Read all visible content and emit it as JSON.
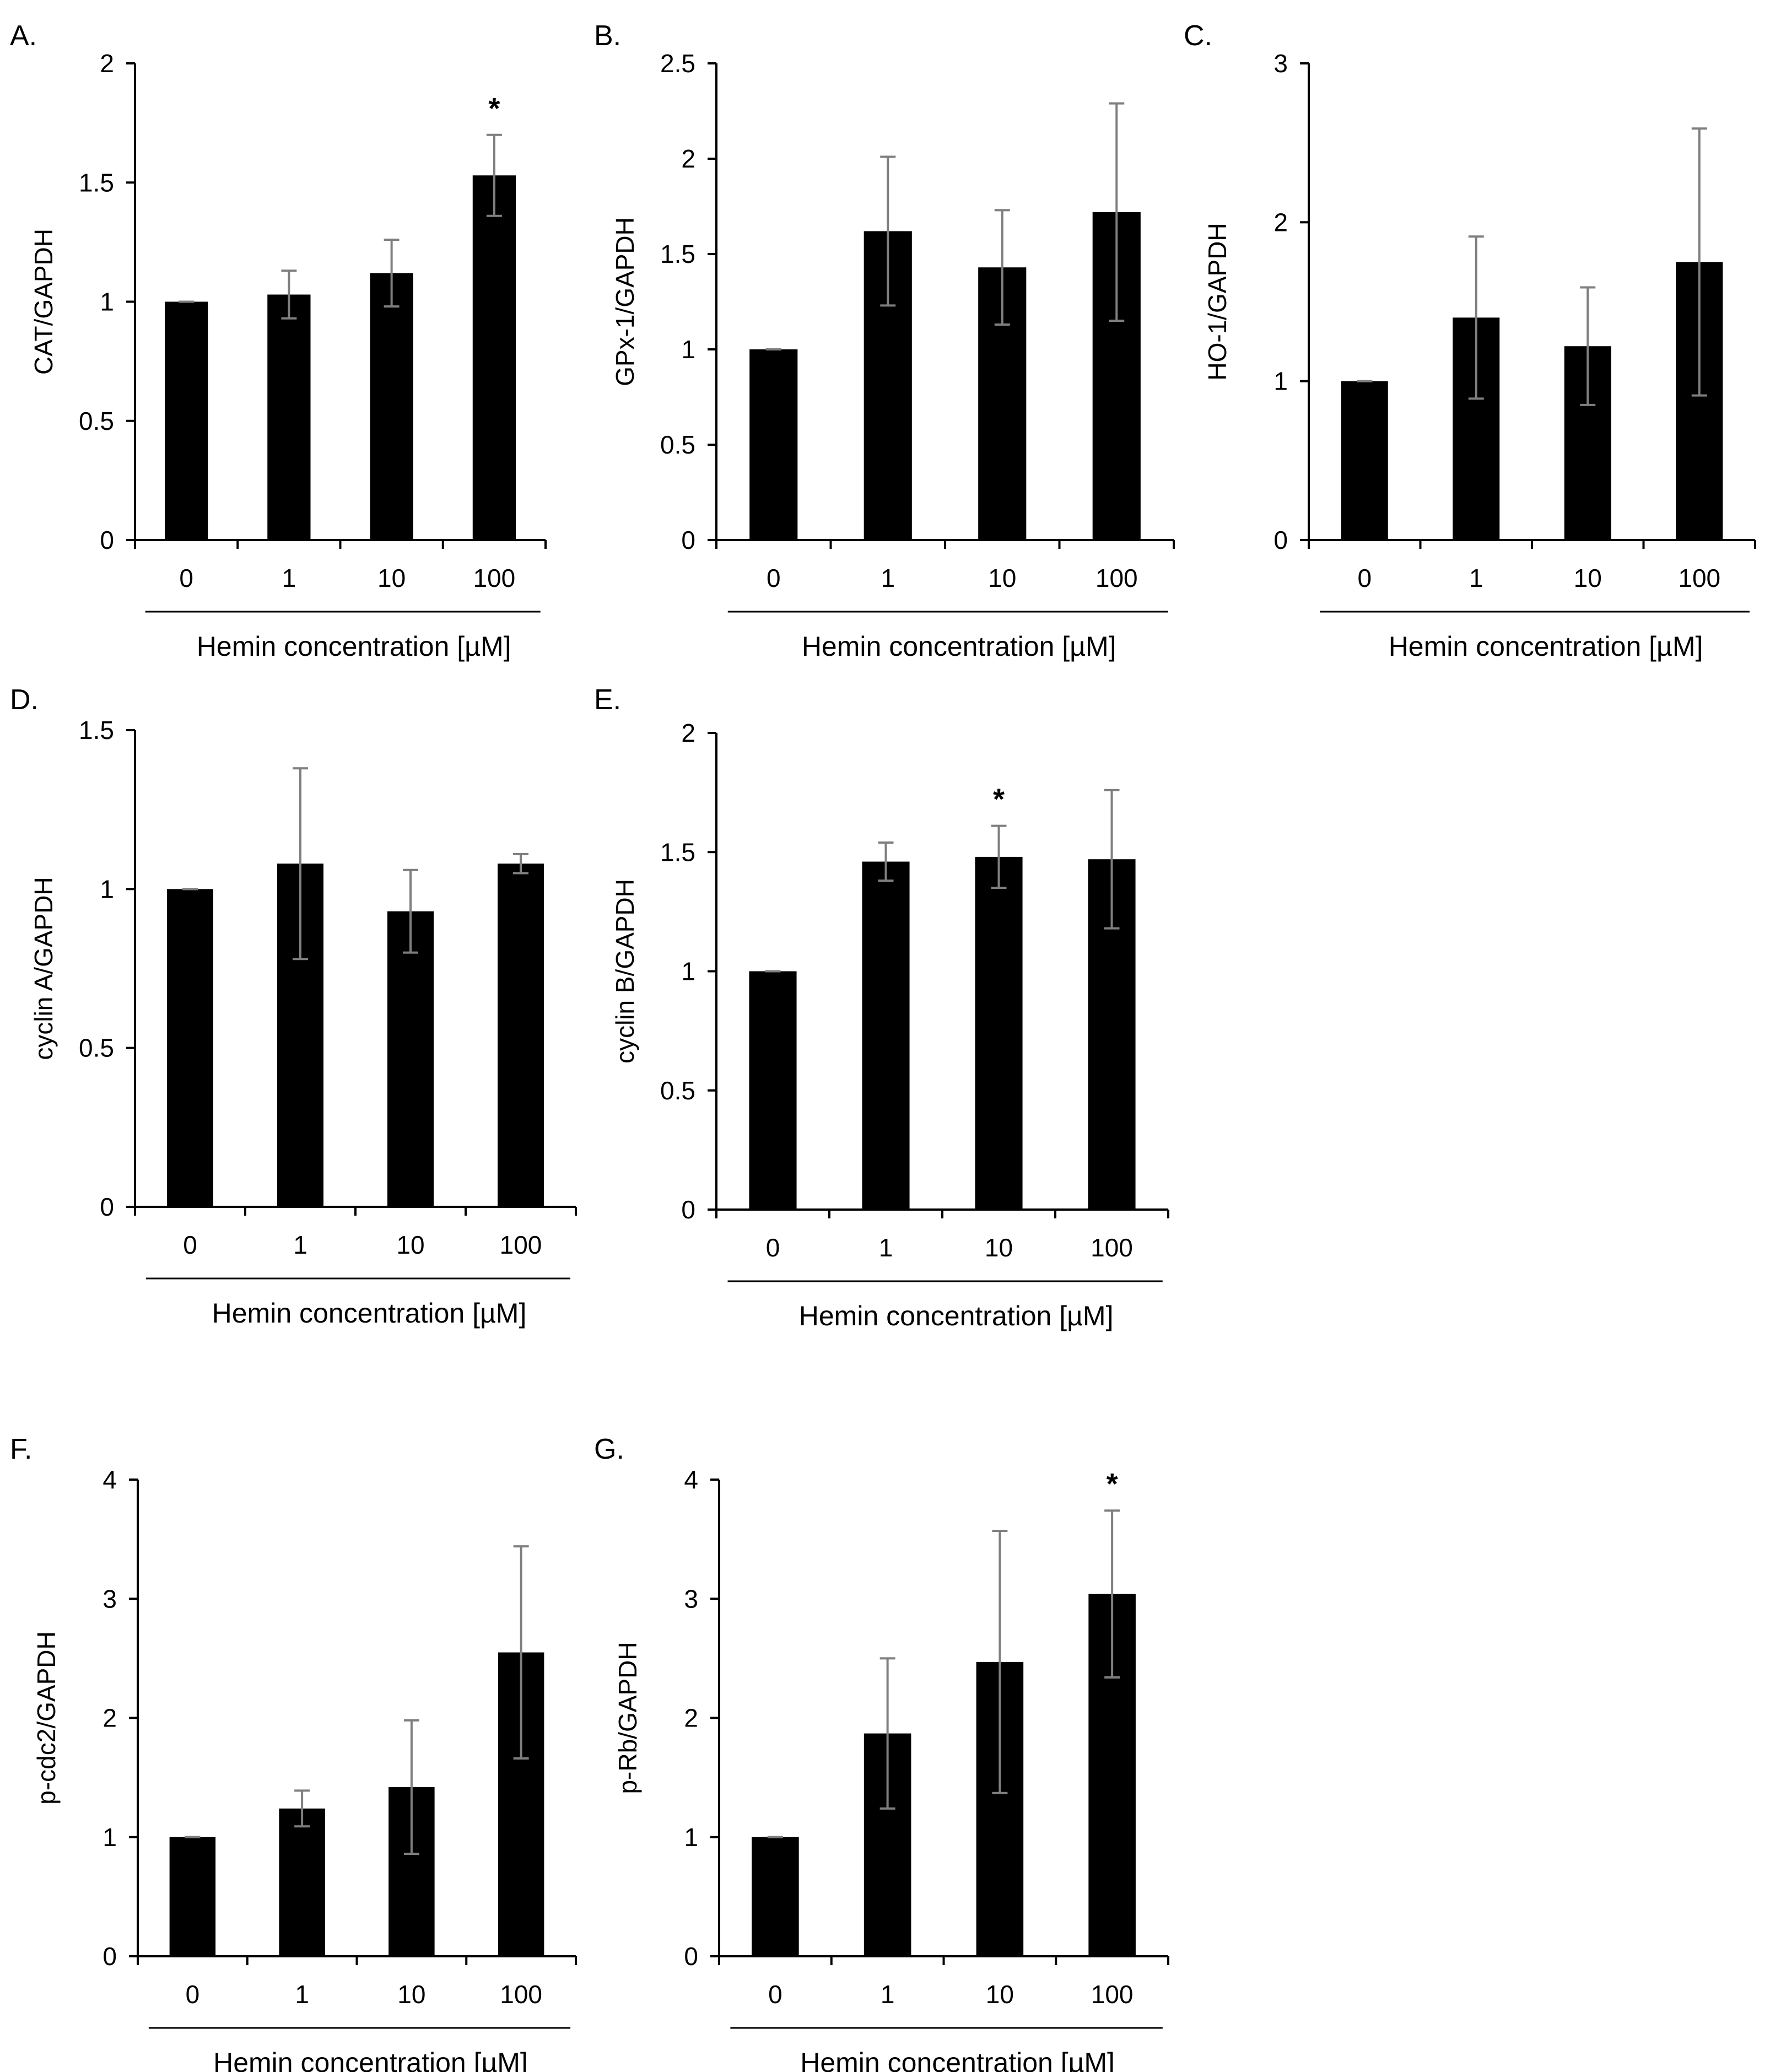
{
  "chart_data": [
    {
      "panel": "A.",
      "type": "bar",
      "ylabel": "CAT/GAPDH",
      "xlabel": "Hemin concentration [µM]",
      "categories": [
        "0",
        "1",
        "10",
        "100"
      ],
      "values": [
        1.0,
        1.03,
        1.12,
        1.53
      ],
      "errors": [
        0.0,
        0.1,
        0.14,
        0.17
      ],
      "significance": [
        "",
        "",
        "",
        "*"
      ],
      "ylim": [
        0,
        2
      ],
      "yticks": [
        "0",
        "0.5",
        "1",
        "1.5",
        "2"
      ]
    },
    {
      "panel": "B.",
      "type": "bar",
      "ylabel": "GPx-1/GAPDH",
      "xlabel": "Hemin concentration [µM]",
      "categories": [
        "0",
        "1",
        "10",
        "100"
      ],
      "values": [
        1.0,
        1.62,
        1.43,
        1.72
      ],
      "errors": [
        0.0,
        0.39,
        0.3,
        0.57
      ],
      "significance": [
        "",
        "",
        "",
        ""
      ],
      "ylim": [
        0,
        2.5
      ],
      "yticks": [
        "0",
        "0.5",
        "1",
        "1.5",
        "2",
        "2.5"
      ]
    },
    {
      "panel": "C.",
      "type": "bar",
      "ylabel": "HO-1/GAPDH",
      "xlabel": "Hemin concentration [µM]",
      "categories": [
        "0",
        "1",
        "10",
        "100"
      ],
      "values": [
        1.0,
        1.4,
        1.22,
        1.75
      ],
      "errors": [
        0.0,
        0.51,
        0.37,
        0.84
      ],
      "significance": [
        "",
        "",
        "",
        ""
      ],
      "ylim": [
        0,
        3
      ],
      "yticks": [
        "0",
        "1",
        "2",
        "3"
      ]
    },
    {
      "panel": "D.",
      "type": "bar",
      "ylabel": "cyclin A/GAPDH",
      "xlabel": "Hemin concentration [µM]",
      "categories": [
        "0",
        "1",
        "10",
        "100"
      ],
      "values": [
        1.0,
        1.08,
        0.93,
        1.08
      ],
      "errors": [
        0.0,
        0.3,
        0.13,
        0.03
      ],
      "significance": [
        "",
        "",
        "",
        ""
      ],
      "ylim": [
        0,
        1.5
      ],
      "yticks": [
        "0",
        "0.5",
        "1",
        "1.5"
      ]
    },
    {
      "panel": "E.",
      "type": "bar",
      "ylabel": "cyclin B/GAPDH",
      "xlabel": "Hemin concentration [µM]",
      "categories": [
        "0",
        "1",
        "10",
        "100"
      ],
      "values": [
        1.0,
        1.46,
        1.48,
        1.47
      ],
      "errors": [
        0.0,
        0.08,
        0.13,
        0.29
      ],
      "significance": [
        "",
        "",
        "*",
        ""
      ],
      "ylim": [
        0,
        2
      ],
      "yticks": [
        "0",
        "0.5",
        "1",
        "1.5",
        "2"
      ]
    },
    {
      "panel": "F.",
      "type": "bar",
      "ylabel": "p-cdc2/GAPDH",
      "xlabel": "Hemin concentration [µM]",
      "categories": [
        "0",
        "1",
        "10",
        "100"
      ],
      "values": [
        1.0,
        1.24,
        1.42,
        2.55
      ],
      "errors": [
        0.0,
        0.15,
        0.56,
        0.89
      ],
      "significance": [
        "",
        "",
        "",
        ""
      ],
      "ylim": [
        0,
        4
      ],
      "yticks": [
        "0",
        "1",
        "2",
        "3",
        "4"
      ]
    },
    {
      "panel": "G.",
      "type": "bar",
      "ylabel": "p-Rb/GAPDH",
      "xlabel": "Hemin concentration [µM]",
      "categories": [
        "0",
        "1",
        "10",
        "100"
      ],
      "values": [
        1.0,
        1.87,
        2.47,
        3.04
      ],
      "errors": [
        0.0,
        0.63,
        1.1,
        0.7
      ],
      "significance": [
        "",
        "",
        "",
        "*"
      ],
      "ylim": [
        0,
        4
      ],
      "yticks": [
        "0",
        "1",
        "2",
        "3",
        "4"
      ]
    }
  ],
  "colors": {
    "bar": "#000000",
    "error_bar": "#7f7f7f",
    "axis": "#000000",
    "text": "#000000"
  }
}
